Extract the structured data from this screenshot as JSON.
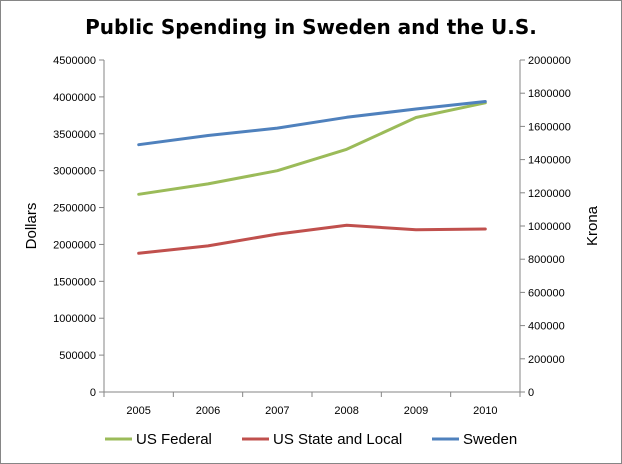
{
  "chart_data": {
    "type": "line",
    "title": "Public Spending in Sweden and the U.S.",
    "categories": [
      "2005",
      "2006",
      "2007",
      "2008",
      "2009",
      "2010"
    ],
    "ylabel": "Dollars",
    "y2label": "Krona",
    "ylim": [
      0,
      4500000
    ],
    "y2lim": [
      0,
      2000000
    ],
    "yticks": [
      "0",
      "500000",
      "1000000",
      "1500000",
      "2000000",
      "2500000",
      "3000000",
      "3500000",
      "4000000",
      "4500000"
    ],
    "y2ticks": [
      "0",
      "200000",
      "400000",
      "600000",
      "800000",
      "1000000",
      "1200000",
      "1400000",
      "1600000",
      "1800000",
      "2000000"
    ],
    "grid": false,
    "legend_position": "bottom",
    "series": [
      {
        "name": "US Federal",
        "axis": "left",
        "color": "#9BBB59",
        "values": [
          2680000,
          2820000,
          3000000,
          3290000,
          3720000,
          3920000
        ]
      },
      {
        "name": "US State and Local",
        "axis": "left",
        "color": "#C0504D",
        "values": [
          1880000,
          1980000,
          2140000,
          2260000,
          2200000,
          2210000
        ]
      },
      {
        "name": "Sweden",
        "axis": "right",
        "color": "#4F81BD",
        "values": [
          1490000,
          1545000,
          1590000,
          1655000,
          1705000,
          1750000
        ]
      }
    ]
  }
}
